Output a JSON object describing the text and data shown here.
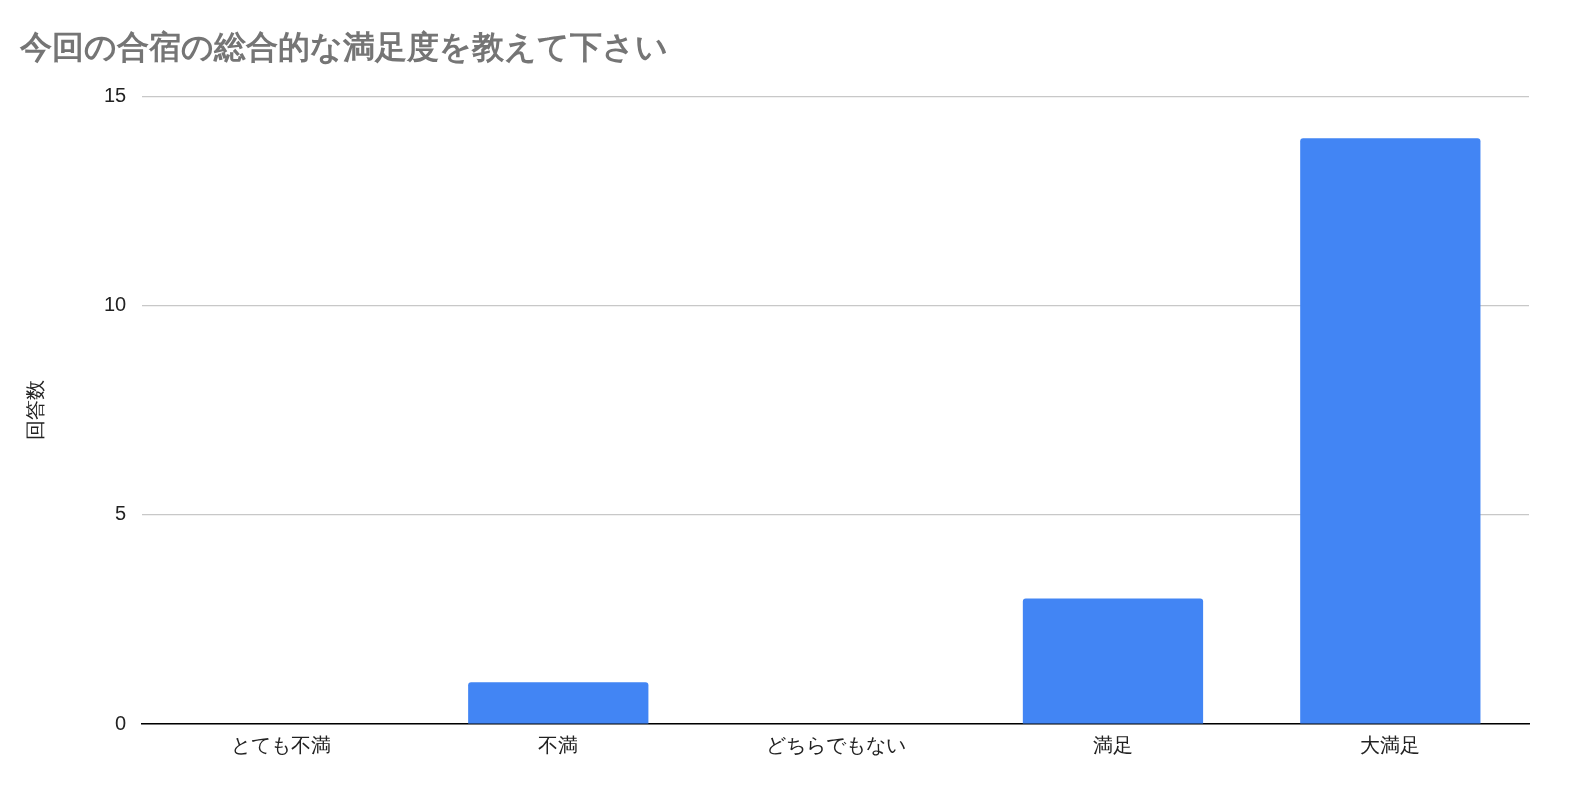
{
  "chart_data": {
    "type": "bar",
    "title": "今回の合宿の総合的な満足度を教えて下さい",
    "ylabel": "回答数",
    "categories": [
      "とても不満",
      "不満",
      "どちらでもない",
      "満足",
      "大満足"
    ],
    "values": [
      0,
      1,
      0,
      3,
      14
    ],
    "color": "#4285f4",
    "ylim": [
      0,
      15
    ],
    "yticks": [
      0,
      5,
      10,
      15
    ],
    "grid": "y",
    "legend": false
  }
}
